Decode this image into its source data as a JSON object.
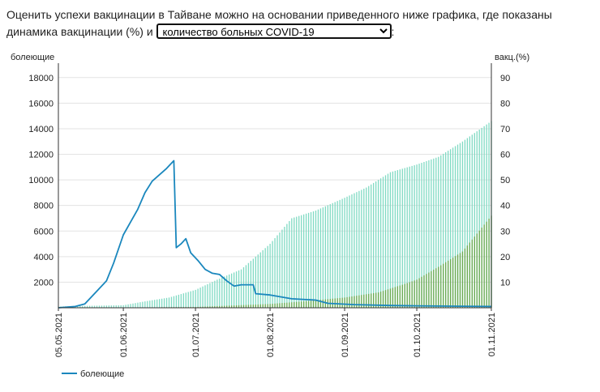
{
  "intro": {
    "text_before": "Оценить успехи вакцинации в Тайване можно на основании приведенного ниже графика, где показаны динамика вакцинации (%) и",
    "text_after": ":",
    "select": {
      "selected": "количество больных COVID-19"
    }
  },
  "colors": {
    "cases_line": "#1a87bd",
    "vax_first_dose_bar": "#7fdac3",
    "vax_full_bar": "#6aa84f",
    "grid": "#e3e3e3",
    "axis": "#333333"
  },
  "chart_data": {
    "type": "line+bar",
    "x_tick_labels": [
      "05.05.2021",
      "01.06.2021",
      "01.07.2021",
      "01.08.2021",
      "01.09.2021",
      "01.10.2021",
      "01.11.2021"
    ],
    "x_range": [
      "2021-05-05",
      "2021-11-01"
    ],
    "y_left": {
      "label": "болеющие",
      "range": [
        0,
        19000
      ],
      "ticks": [
        2000,
        4000,
        6000,
        8000,
        10000,
        12000,
        14000,
        16000,
        18000
      ]
    },
    "y_right": {
      "label": "вакц.(%)",
      "range": [
        0,
        95
      ],
      "ticks": [
        10,
        20,
        30,
        40,
        50,
        60,
        70,
        80,
        90
      ]
    },
    "grid": true,
    "legend": {
      "placement": "bottom-left",
      "entries": [
        "болеющие"
      ]
    },
    "series": [
      {
        "name": "болеющие",
        "type": "line",
        "axis": "left",
        "points": [
          [
            "2021-05-05",
            0
          ],
          [
            "2021-05-12",
            100
          ],
          [
            "2021-05-16",
            300
          ],
          [
            "2021-05-20",
            1100
          ],
          [
            "2021-05-25",
            2100
          ],
          [
            "2021-05-28",
            3500
          ],
          [
            "2021-06-01",
            5700
          ],
          [
            "2021-06-04",
            6700
          ],
          [
            "2021-06-07",
            7700
          ],
          [
            "2021-06-10",
            9000
          ],
          [
            "2021-06-13",
            9900
          ],
          [
            "2021-06-16",
            10400
          ],
          [
            "2021-06-19",
            10900
          ],
          [
            "2021-06-22",
            11500
          ],
          [
            "2021-06-23",
            4700
          ],
          [
            "2021-06-25",
            5000
          ],
          [
            "2021-06-27",
            5400
          ],
          [
            "2021-06-29",
            4300
          ],
          [
            "2021-07-02",
            3700
          ],
          [
            "2021-07-05",
            3000
          ],
          [
            "2021-07-08",
            2700
          ],
          [
            "2021-07-11",
            2600
          ],
          [
            "2021-07-14",
            2100
          ],
          [
            "2021-07-17",
            1700
          ],
          [
            "2021-07-20",
            1800
          ],
          [
            "2021-07-25",
            1800
          ],
          [
            "2021-07-26",
            1100
          ],
          [
            "2021-08-01",
            1000
          ],
          [
            "2021-08-10",
            700
          ],
          [
            "2021-08-20",
            600
          ],
          [
            "2021-08-25",
            350
          ],
          [
            "2021-09-05",
            250
          ],
          [
            "2021-09-20",
            180
          ],
          [
            "2021-10-01",
            150
          ],
          [
            "2021-10-20",
            120
          ],
          [
            "2021-11-01",
            100
          ]
        ]
      },
      {
        "type": "bar",
        "axis": "right",
        "points": [
          [
            "2021-05-05",
            0.5
          ],
          [
            "2021-05-20",
            0.8
          ],
          [
            "2021-06-01",
            1.0
          ],
          [
            "2021-06-10",
            2.5
          ],
          [
            "2021-06-20",
            4.0
          ],
          [
            "2021-07-01",
            7.0
          ],
          [
            "2021-07-10",
            11.0
          ],
          [
            "2021-07-20",
            15.0
          ],
          [
            "2021-08-01",
            25.0
          ],
          [
            "2021-08-10",
            35.0
          ],
          [
            "2021-08-20",
            38.0
          ],
          [
            "2021-09-01",
            43.0
          ],
          [
            "2021-09-10",
            47.0
          ],
          [
            "2021-09-20",
            53.0
          ],
          [
            "2021-10-01",
            56.0
          ],
          [
            "2021-10-10",
            59.0
          ],
          [
            "2021-10-20",
            65.0
          ],
          [
            "2021-11-01",
            73.0
          ]
        ]
      },
      {
        "type": "bar",
        "axis": "right",
        "points": [
          [
            "2021-05-05",
            0.1
          ],
          [
            "2021-06-01",
            0.1
          ],
          [
            "2021-07-01",
            0.3
          ],
          [
            "2021-08-01",
            1.5
          ],
          [
            "2021-08-15",
            2.5
          ],
          [
            "2021-09-01",
            4.0
          ],
          [
            "2021-09-15",
            6.0
          ],
          [
            "2021-09-25",
            9.0
          ],
          [
            "2021-10-01",
            11.0
          ],
          [
            "2021-10-10",
            16.0
          ],
          [
            "2021-10-20",
            22.0
          ],
          [
            "2021-11-01",
            36.0
          ]
        ]
      }
    ]
  }
}
